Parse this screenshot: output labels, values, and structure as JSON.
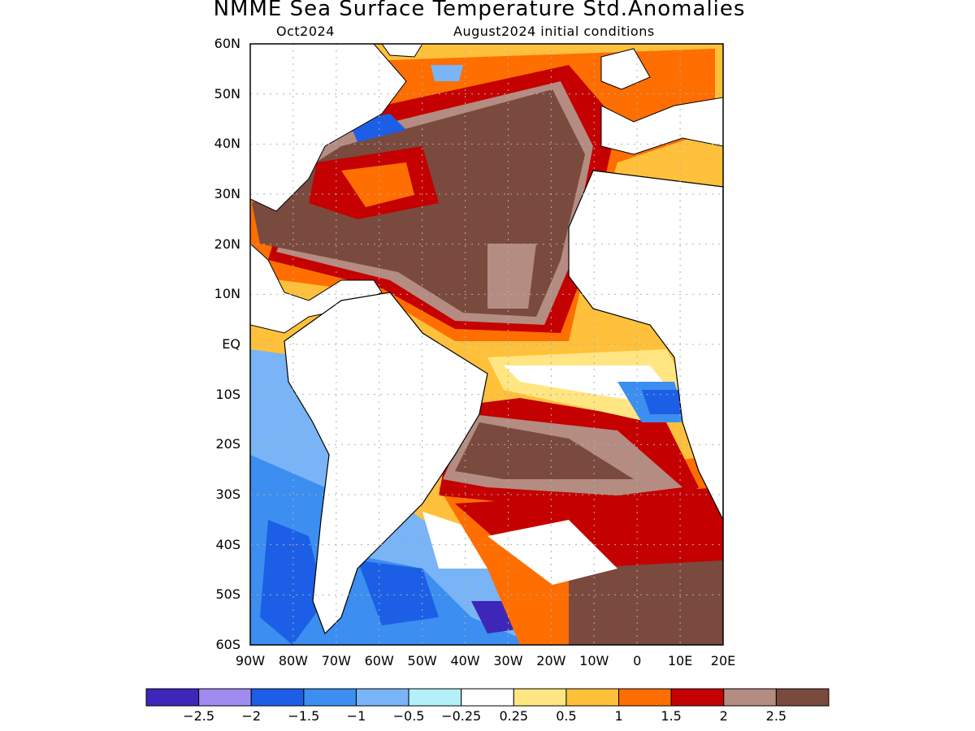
{
  "title": "NMME Sea Surface Temperature Std.Anomalies",
  "subtitle_left": "Oct2024",
  "subtitle_right": "August2024 initial conditions",
  "lat_labels": [
    "60N",
    "50N",
    "40N",
    "30N",
    "20N",
    "10N",
    "EQ",
    "10S",
    "20S",
    "30S",
    "40S",
    "50S",
    "60S"
  ],
  "lon_labels": [
    "90W",
    "80W",
    "70W",
    "60W",
    "50W",
    "40W",
    "30W",
    "20W",
    "10W",
    "0",
    "10E",
    "20E"
  ],
  "colorbar": {
    "colors": [
      "#3e26b8",
      "#a08cf0",
      "#1c5fe6",
      "#3c8ef0",
      "#78b4f6",
      "#b4f0fa",
      "#ffffff",
      "#ffe682",
      "#ffc03c",
      "#ff6e00",
      "#c40000",
      "#b48c82",
      "#7a4a3e"
    ],
    "labels": [
      "-2.5",
      "-2",
      "-1.5",
      "-1",
      "-0.5",
      "-0.25",
      "0.25",
      "0.5",
      "1",
      "1.5",
      "2",
      "2.5"
    ]
  },
  "colors": {
    "land": "#ffffff",
    "grid": "#b0b0b0",
    "coast": "#000000"
  }
}
